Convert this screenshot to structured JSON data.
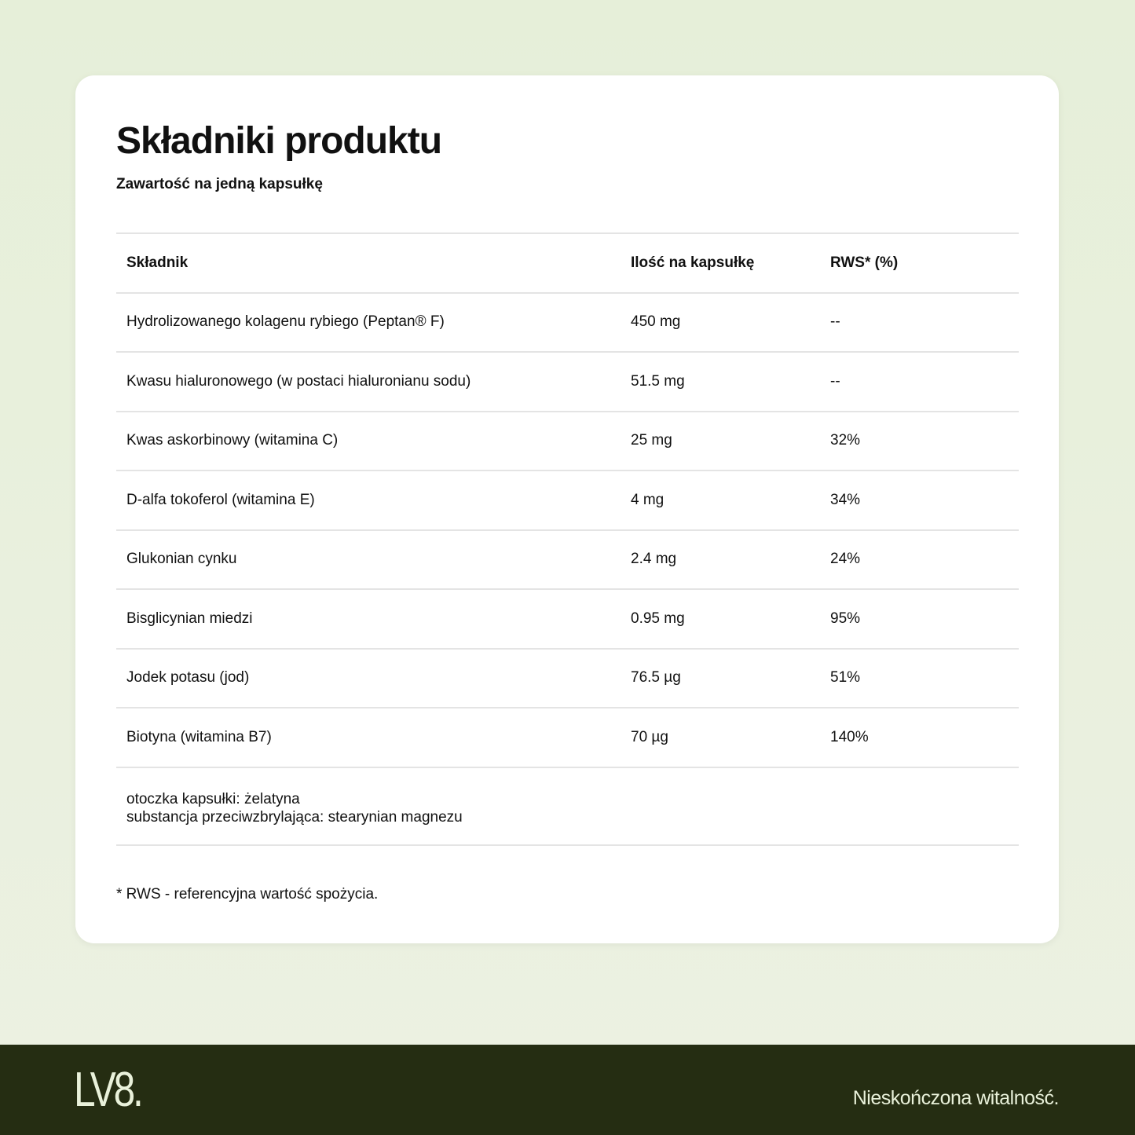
{
  "title": "Składniki produktu",
  "subtitle": "Zawartość na jedną kapsułkę",
  "table": {
    "headers": [
      "Składnik",
      "Ilość na kapsułkę",
      "RWS* (%)"
    ],
    "rows": [
      [
        "Hydrolizowanego kolagenu rybiego (Peptan® F)",
        "450 mg",
        "--"
      ],
      [
        "Kwasu hialuronowego (w postaci hialuronianu sodu)",
        "51.5 mg",
        "--"
      ],
      [
        "Kwas askorbinowy (witamina C)",
        "25 mg",
        "32%"
      ],
      [
        "D-alfa tokoferol (witamina E)",
        "4 mg",
        "34%"
      ],
      [
        "Glukonian cynku",
        "2.4 mg",
        "24%"
      ],
      [
        "Bisglicynian miedzi",
        "0.95 mg",
        "95%"
      ],
      [
        "Jodek potasu (jod)",
        "76.5 µg",
        "51%"
      ],
      [
        "Biotyna (witamina B7)",
        "70 µg",
        "140%"
      ]
    ],
    "extra": [
      "otoczka kapsułki: żelatyna",
      "substancja przeciwzbrylająca: stearynian magnezu"
    ]
  },
  "note": "* RWS - referencyjna wartość spożycia.",
  "footer": {
    "logo": "LV8.",
    "tagline": "Nieskończona witalność.",
    "bg": "#252d12"
  }
}
